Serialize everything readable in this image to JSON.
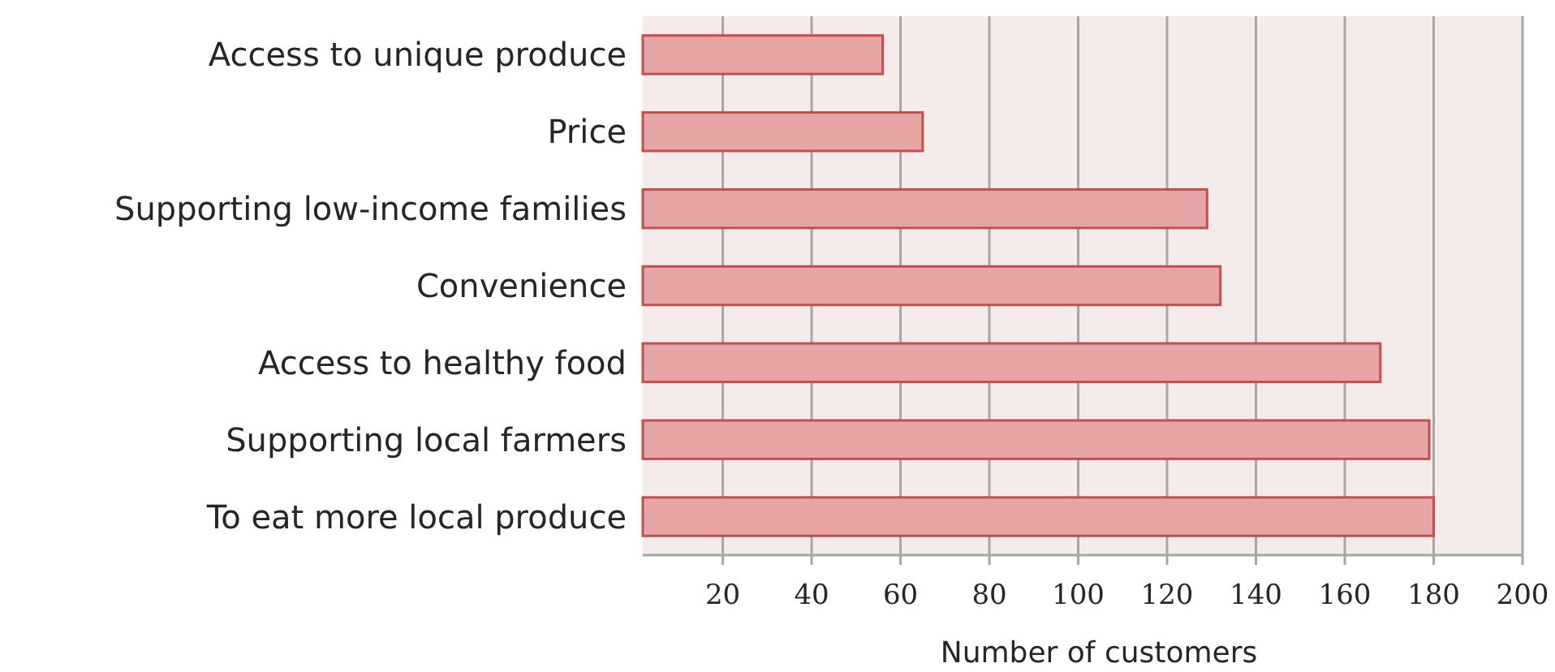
{
  "chart_data": {
    "type": "bar",
    "orientation": "horizontal",
    "xlabel": "Number of customers",
    "categories": [
      "Access to unique produce",
      "Price",
      "Supporting low-income families",
      "Convenience",
      "Access to healthy food",
      "Supporting local farmers",
      "To eat more local produce"
    ],
    "values": [
      56,
      65,
      129,
      132,
      168,
      179,
      180
    ],
    "color": "#e8a5a5",
    "xlim": [
      2,
      200
    ],
    "xticks": [
      20,
      40,
      60,
      80,
      100,
      120,
      140,
      160,
      180,
      200
    ],
    "grid": "x"
  }
}
